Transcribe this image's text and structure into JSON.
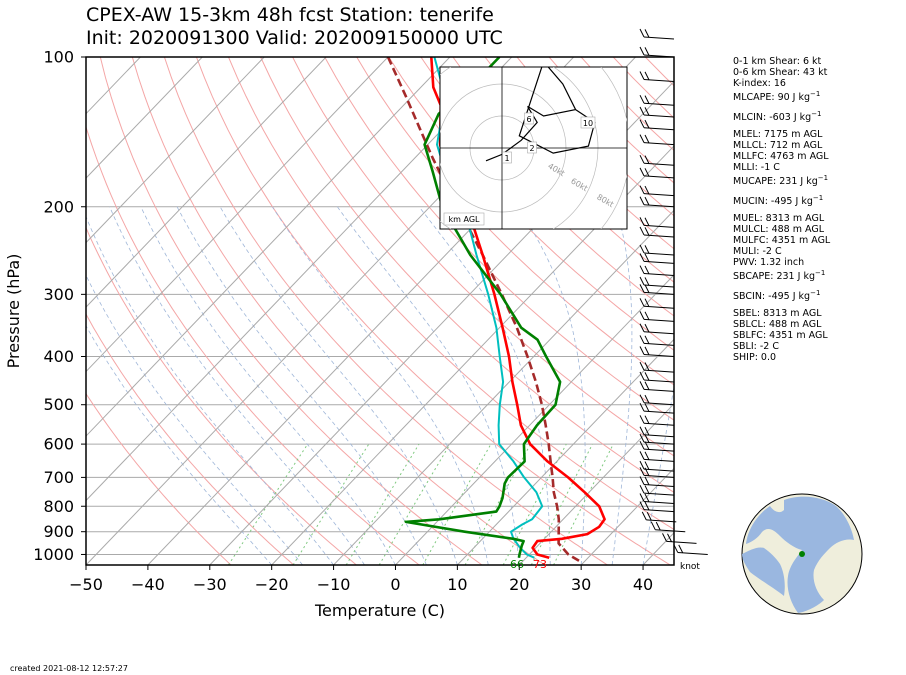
{
  "title": {
    "line1": "CPEX-AW 15-3km  48h fcst  Station: tenerife",
    "line2": "Init: 2020091300  Valid: 202009150000 UTC"
  },
  "created": "created 2021-08-12 12:57:27",
  "indices": [
    {
      "text": "0-1 km Shear: 6 kt"
    },
    {
      "text": "0-6 km Shear: 43 kt"
    },
    {
      "text": "K-index: 16"
    },
    {
      "text": "MLCAPE: 90 J kg",
      "sup": "−1"
    },
    {
      "text": "MLCIN: -603 J kg",
      "sup": "−1"
    },
    {
      "text": "MLEL: 7175 m AGL"
    },
    {
      "text": "MLLCL: 712 m AGL"
    },
    {
      "text": "MLLFC: 4763 m AGL"
    },
    {
      "text": "MLLI: -1 C"
    },
    {
      "text": "MUCAPE: 231 J kg",
      "sup": "−1"
    },
    {
      "text": "MUCIN: -495 J kg",
      "sup": "−1"
    },
    {
      "text": "MUEL: 8313 m AGL"
    },
    {
      "text": "MULCL: 488 m AGL"
    },
    {
      "text": "MULFC: 4351 m AGL"
    },
    {
      "text": "MULI: -2 C"
    },
    {
      "text": "PWV: 1.32 inch"
    },
    {
      "text": "SBCAPE: 231 J kg",
      "sup": "−1"
    },
    {
      "text": "SBCIN: -495 J kg",
      "sup": "−1"
    },
    {
      "text": "SBEL: 8313 m AGL"
    },
    {
      "text": "SBLCL: 488 m AGL"
    },
    {
      "text": "SBLFC: 4351 m AGL"
    },
    {
      "text": "SBLI: -2 C"
    },
    {
      "text": "SHIP: 0.0"
    }
  ],
  "colors": {
    "temperature": "#ff0000",
    "dewpoint": "#008000",
    "wetbulb": "#00bfbf",
    "parcel": "#a52a2a",
    "isotherm": "#aaaaaa",
    "dry_adiabat": "#f4a6a6",
    "mixing_ratio": "#7fc97f",
    "ocean": "#9ab7e0",
    "land": "#efeedc"
  },
  "chart_data": {
    "type": "line",
    "xlabel": "Temperature (C)",
    "ylabel": "Pressure (hPa)",
    "xlim": [
      -50,
      45
    ],
    "ylim": [
      1050,
      100
    ],
    "yscale": "log",
    "xticks": [
      -50,
      -40,
      -30,
      -20,
      -10,
      0,
      10,
      20,
      30,
      40
    ],
    "yticks": [
      100,
      200,
      300,
      400,
      500,
      600,
      700,
      800,
      900,
      1000
    ],
    "surface_labels": {
      "dewpoint": "66",
      "temperature": "73"
    },
    "wind_unit": "knot",
    "series": [
      {
        "key": "parcel",
        "style": "dashed",
        "points": [
          [
            1030,
            29.0
          ],
          [
            1000,
            26.3
          ],
          [
            950,
            23.0
          ],
          [
            900,
            21.2
          ],
          [
            850,
            19.3
          ],
          [
            800,
            17.0
          ],
          [
            750,
            14.3
          ],
          [
            700,
            11.8
          ],
          [
            650,
            9.0
          ],
          [
            600,
            6.0
          ],
          [
            550,
            2.6
          ],
          [
            500,
            -1.2
          ],
          [
            450,
            -5.7
          ],
          [
            400,
            -11.0
          ],
          [
            350,
            -17.2
          ],
          [
            300,
            -24.8
          ],
          [
            250,
            -34.0
          ],
          [
            200,
            -45.5
          ],
          [
            180,
            -51.0
          ],
          [
            160,
            -57.0
          ],
          [
            140,
            -63.5
          ],
          [
            120,
            -71.0
          ],
          [
            100,
            -80.0
          ]
        ]
      },
      {
        "key": "temperature",
        "style": "solid",
        "points": [
          [
            1015,
            23.7
          ],
          [
            1000,
            21.3
          ],
          [
            970,
            19.5
          ],
          [
            940,
            19.2
          ],
          [
            930,
            22.8
          ],
          [
            910,
            26.2
          ],
          [
            880,
            27.0
          ],
          [
            850,
            26.7
          ],
          [
            800,
            23.8
          ],
          [
            750,
            19.3
          ],
          [
            700,
            14.3
          ],
          [
            650,
            8.5
          ],
          [
            600,
            3.0
          ],
          [
            550,
            -1.4
          ],
          [
            500,
            -5.2
          ],
          [
            450,
            -9.5
          ],
          [
            400,
            -14.0
          ],
          [
            350,
            -19.5
          ],
          [
            300,
            -26.0
          ],
          [
            250,
            -34.0
          ],
          [
            200,
            -44.0
          ],
          [
            175,
            -51.5
          ],
          [
            150,
            -58.0
          ],
          [
            125,
            -64.0
          ],
          [
            115,
            -68.0
          ],
          [
            100,
            -73.0
          ]
        ]
      },
      {
        "key": "wetbulb",
        "style": "solid",
        "points": [
          [
            1015,
            21.3
          ],
          [
            1000,
            19.6
          ],
          [
            970,
            17.5
          ],
          [
            930,
            15.0
          ],
          [
            900,
            13.5
          ],
          [
            870,
            14.2
          ],
          [
            850,
            15.0
          ],
          [
            800,
            14.6
          ],
          [
            750,
            11.5
          ],
          [
            700,
            7.2
          ],
          [
            650,
            3.0
          ],
          [
            600,
            -2.0
          ],
          [
            550,
            -5.0
          ],
          [
            500,
            -8.0
          ],
          [
            450,
            -11.0
          ],
          [
            400,
            -15.5
          ],
          [
            350,
            -20.5
          ],
          [
            300,
            -27.0
          ],
          [
            250,
            -35.0
          ],
          [
            200,
            -44.5
          ],
          [
            175,
            -51.7
          ],
          [
            150,
            -58.5
          ],
          [
            125,
            -63.5
          ],
          [
            115,
            -66.5
          ],
          [
            100,
            -72.5
          ]
        ]
      },
      {
        "key": "dewpoint",
        "style": "solid",
        "points": [
          [
            1015,
            18.8
          ],
          [
            1000,
            18.4
          ],
          [
            960,
            17.4
          ],
          [
            940,
            17.0
          ],
          [
            930,
            15.0
          ],
          [
            900,
            6.0
          ],
          [
            860,
            -5.0
          ],
          [
            850,
            0.0
          ],
          [
            820,
            8.0
          ],
          [
            800,
            7.7
          ],
          [
            770,
            6.9
          ],
          [
            720,
            5.0
          ],
          [
            700,
            4.6
          ],
          [
            650,
            4.8
          ],
          [
            600,
            2.0
          ],
          [
            550,
            1.2
          ],
          [
            500,
            1.0
          ],
          [
            450,
            -1.8
          ],
          [
            400,
            -8.0
          ],
          [
            370,
            -12.0
          ],
          [
            350,
            -16.5
          ],
          [
            300,
            -25.0
          ],
          [
            250,
            -36.0
          ],
          [
            200,
            -48.0
          ],
          [
            170,
            -55.0
          ],
          [
            150,
            -60.5
          ],
          [
            130,
            -63.0
          ],
          [
            115,
            -62.0
          ],
          [
            100,
            -62.0
          ]
        ]
      }
    ],
    "hodograph": {
      "range_labels": [
        "40kt",
        "60kt",
        "80kt"
      ],
      "height_labels": [
        "1",
        "2",
        "6",
        "10"
      ],
      "box_label": "km AGL",
      "points": [
        [
          -2.5,
          -2.0
        ],
        [
          0,
          -1.0
        ],
        [
          3.0,
          1.2
        ],
        [
          5.5,
          4.0
        ],
        [
          4.0,
          6.5
        ],
        [
          6.5,
          5.0
        ],
        [
          11.5,
          6.0
        ],
        [
          9.5,
          10.0
        ],
        [
          6.5,
          13.5
        ],
        [
          2.7,
          1.9
        ],
        [
          8.0,
          -0.8
        ],
        [
          13.5,
          0.3
        ],
        [
          14.5,
          4.0
        ],
        [
          11.5,
          6.0
        ]
      ]
    }
  }
}
